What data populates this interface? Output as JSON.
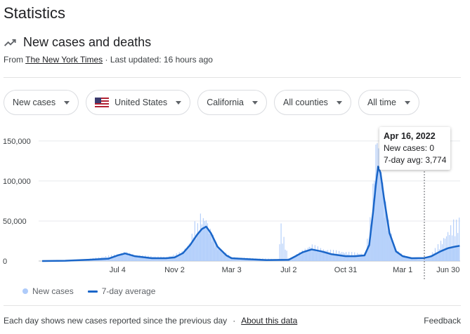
{
  "title": "Statistics",
  "subtitle": "New cases and deaths",
  "source": {
    "prefix": "From ",
    "link": "The New York Times",
    "updated": " · Last updated: 16 hours ago"
  },
  "filters": [
    {
      "label": "New cases"
    },
    {
      "label": "United States",
      "icon": "us-flag-icon"
    },
    {
      "label": "California"
    },
    {
      "label": "All counties"
    },
    {
      "label": "All time"
    }
  ],
  "tooltip": {
    "date": "Apr 16, 2022",
    "new_cases": "New cases: 0",
    "avg": "7-day avg: 3,774"
  },
  "legend": {
    "new_cases": "New cases",
    "avg": "7-day average"
  },
  "footer": {
    "text": "Each day shows new cases reported since the previous day",
    "sep": "·",
    "link": "About this data",
    "feedback": "Feedback"
  },
  "colors": {
    "bars": "#aecbfa",
    "area": "#a8c7fa",
    "line": "#1a66c9"
  },
  "chart_data": {
    "type": "line",
    "title": "",
    "ylim": [
      0,
      170000
    ],
    "yticks": [
      0,
      50000,
      100000,
      150000
    ],
    "ytick_labels": [
      "0",
      "50,000",
      "100,000",
      "150,000"
    ],
    "xtick_labels": [
      "Jul 4",
      "Nov 2",
      "Mar 3",
      "Jul 2",
      "Oct 31",
      "Mar 1",
      "Jun 30"
    ],
    "x_range": [
      "2020-01-26",
      "2022-07-01"
    ],
    "xticks": [
      "2020-07-04",
      "2020-11-02",
      "2021-03-03",
      "2021-07-02",
      "2021-10-31",
      "2022-03-01",
      "2022-06-30"
    ],
    "highlight_date": "2022-04-16",
    "series": [
      {
        "name": "7-day average",
        "x": [
          "2020-01-26",
          "2020-03-15",
          "2020-05-01",
          "2020-06-15",
          "2020-07-04",
          "2020-07-20",
          "2020-08-10",
          "2020-09-15",
          "2020-10-15",
          "2020-11-02",
          "2020-11-20",
          "2020-12-05",
          "2020-12-20",
          "2020-12-30",
          "2021-01-08",
          "2021-01-18",
          "2021-02-01",
          "2021-02-20",
          "2021-03-03",
          "2021-04-01",
          "2021-05-15",
          "2021-07-02",
          "2021-07-15",
          "2021-08-01",
          "2021-08-20",
          "2021-09-10",
          "2021-10-01",
          "2021-10-31",
          "2021-11-20",
          "2021-12-10",
          "2021-12-20",
          "2021-12-28",
          "2022-01-03",
          "2022-01-08",
          "2022-01-13",
          "2022-01-20",
          "2022-02-01",
          "2022-02-15",
          "2022-03-01",
          "2022-03-20",
          "2022-04-16",
          "2022-05-01",
          "2022-05-20",
          "2022-06-05",
          "2022-06-20",
          "2022-06-30"
        ],
        "y": [
          0,
          300,
          1500,
          3000,
          7000,
          9500,
          6000,
          3500,
          3500,
          4500,
          10000,
          20000,
          33000,
          40000,
          43000,
          35000,
          18000,
          7000,
          3500,
          2500,
          1200,
          1500,
          5500,
          11000,
          14500,
          12000,
          8500,
          6000,
          6000,
          7000,
          20000,
          60000,
          95000,
          118000,
          110000,
          80000,
          35000,
          12000,
          6000,
          3500,
          3774,
          6000,
          12000,
          16000,
          18000,
          19000
        ]
      },
      {
        "name": "New cases",
        "x": [
          "2020-01-26",
          "2020-05-01",
          "2020-07-04",
          "2020-07-20",
          "2020-08-10",
          "2020-10-15",
          "2020-11-20",
          "2020-12-05",
          "2020-12-15",
          "2020-12-20",
          "2020-12-28",
          "2021-01-02",
          "2021-01-08",
          "2021-01-12",
          "2021-01-18",
          "2021-02-01",
          "2021-03-03",
          "2021-06-10",
          "2021-06-15",
          "2021-07-02",
          "2021-08-01",
          "2021-08-20",
          "2021-09-10",
          "2021-10-31",
          "2021-12-10",
          "2021-12-20",
          "2021-12-28",
          "2022-01-03",
          "2022-01-06",
          "2022-01-10",
          "2022-01-13",
          "2022-01-18",
          "2022-01-25",
          "2022-02-01",
          "2022-02-15",
          "2022-03-01",
          "2022-04-16",
          "2022-05-01",
          "2022-05-20",
          "2022-06-01",
          "2022-06-10",
          "2022-06-20",
          "2022-06-25",
          "2022-06-30"
        ],
        "y": [
          0,
          2500,
          9000,
          12000,
          8000,
          5000,
          13000,
          26000,
          50000,
          45000,
          63000,
          58000,
          60000,
          48000,
          40000,
          20000,
          5000,
          2500,
          50000,
          2000,
          14000,
          22000,
          16000,
          12000,
          10000,
          40000,
          100000,
          160000,
          170000,
          170000,
          150000,
          100000,
          70000,
          45000,
          15000,
          8000,
          0,
          10000,
          25000,
          35000,
          45000,
          55000,
          50000,
          58000
        ]
      }
    ]
  }
}
